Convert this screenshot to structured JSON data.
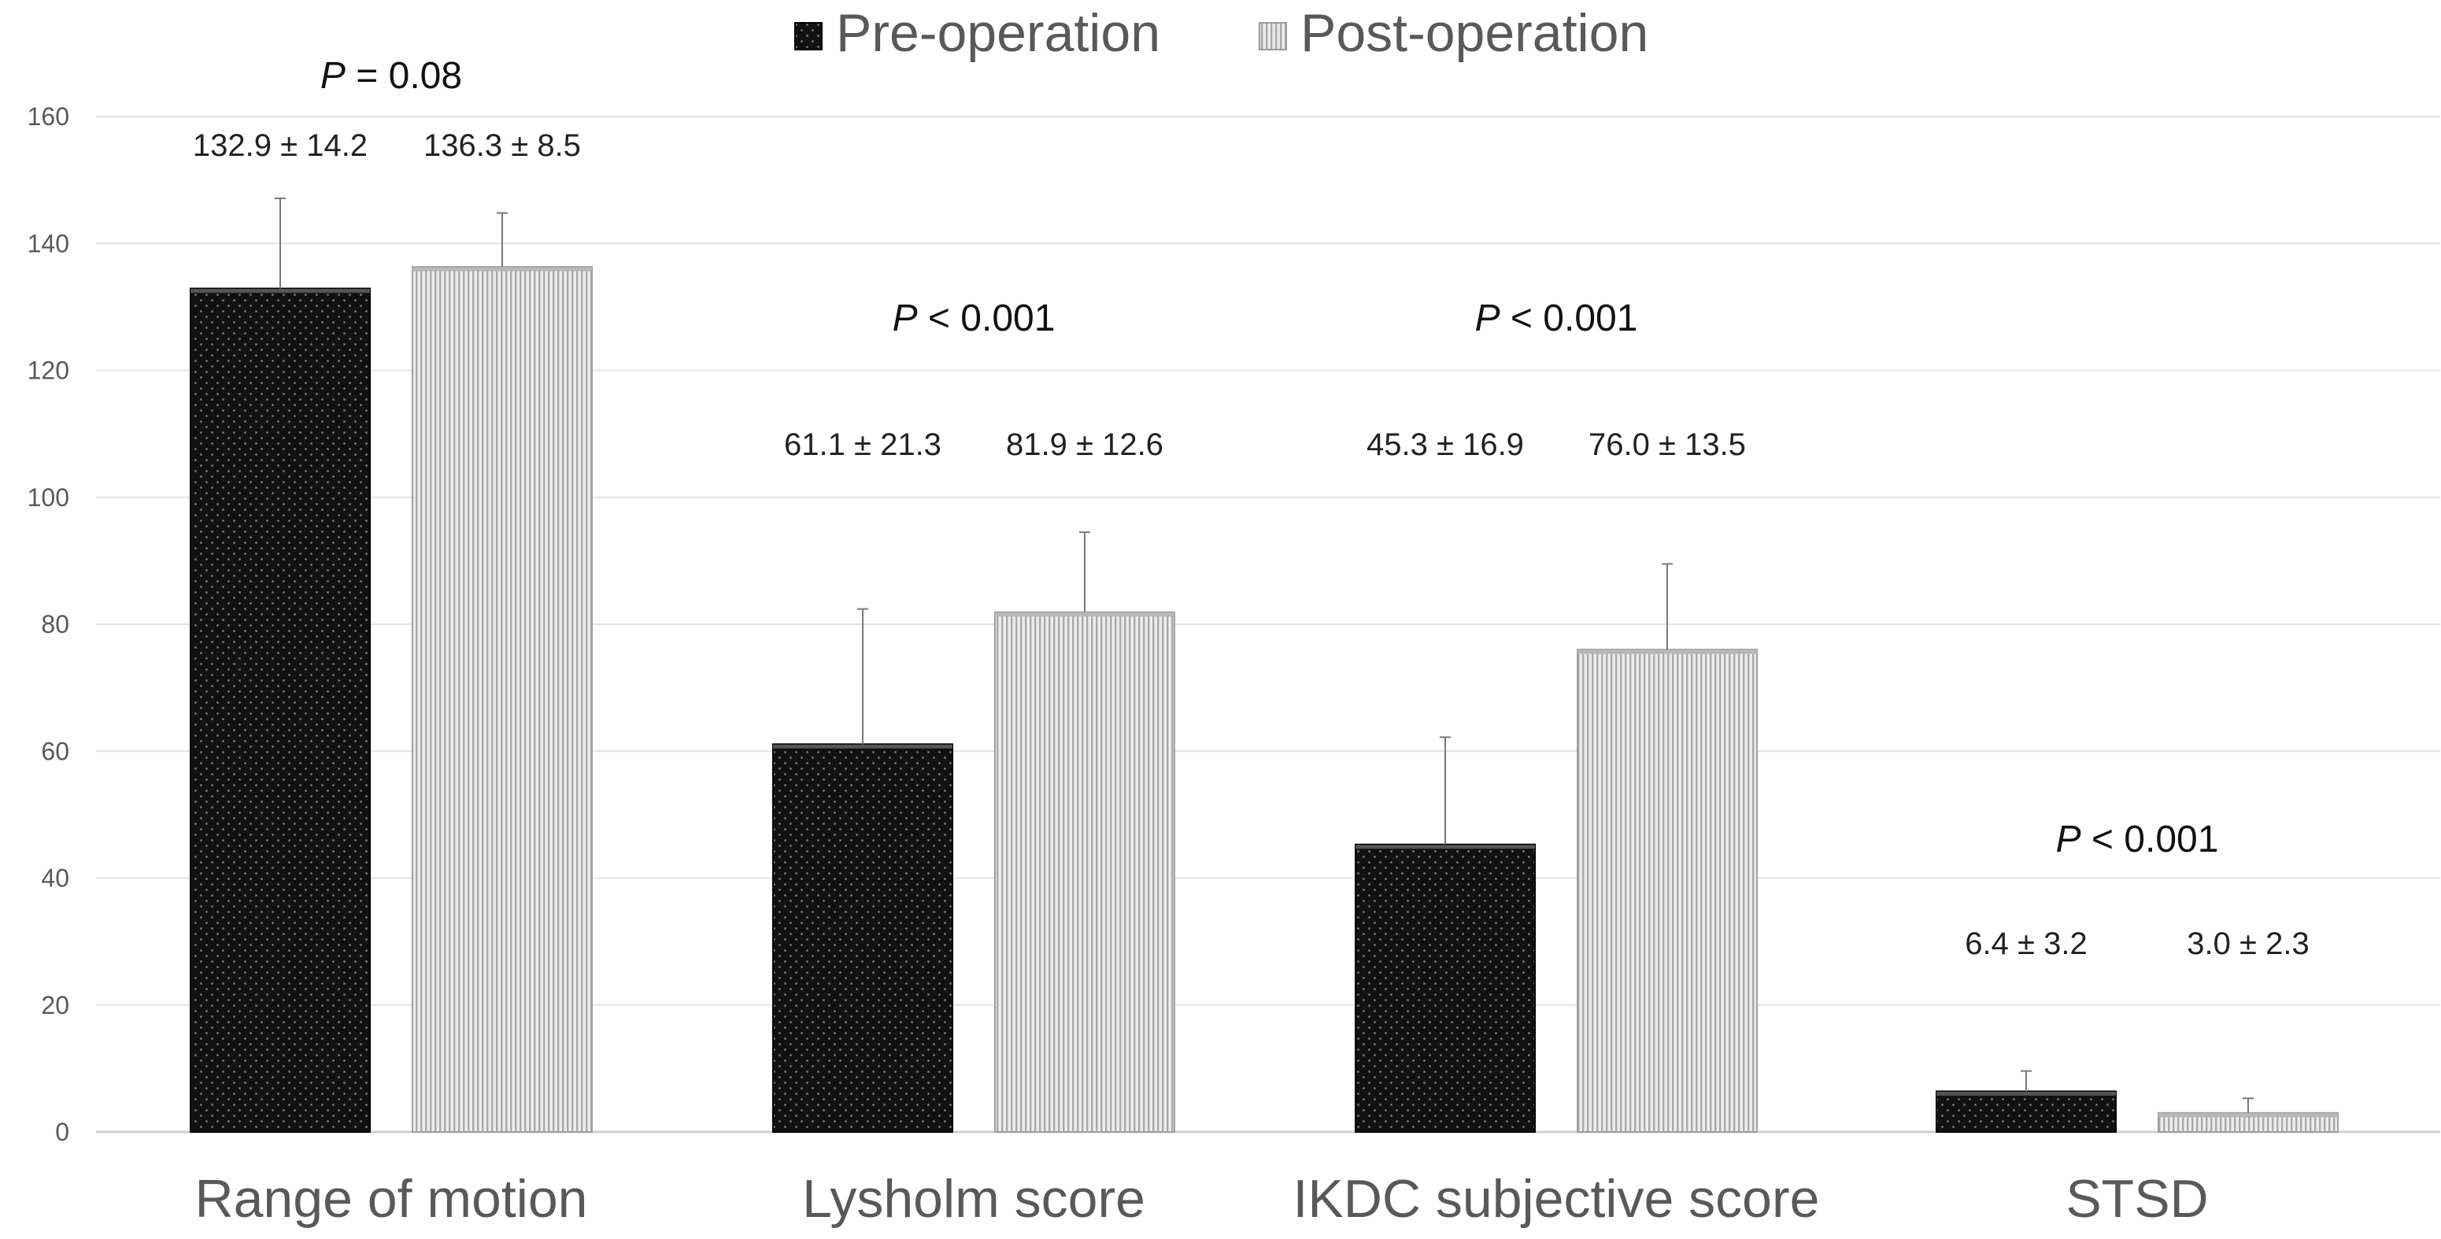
{
  "chart_data": {
    "type": "bar",
    "title": "",
    "xlabel": "",
    "ylabel": "",
    "ylim": [
      0,
      160
    ],
    "yticks": [
      0,
      20,
      40,
      60,
      80,
      100,
      120,
      140,
      160
    ],
    "grid": true,
    "legend_position": "top-center",
    "categories": [
      "Range of motion",
      "Lysholm score",
      "IKDC subjective score",
      "STSD"
    ],
    "series": [
      {
        "name": "Pre-operation",
        "color": "#111111",
        "pattern": "dots",
        "values": [
          132.9,
          61.1,
          45.3,
          6.4
        ],
        "errors": [
          14.2,
          21.3,
          16.9,
          3.2
        ],
        "labels": [
          "132.9 ± 14.2",
          "61.1 ± 21.3",
          "45.3 ± 16.9",
          "6.4 ± 3.2"
        ]
      },
      {
        "name": "Post-operation",
        "color": "#d4d4d4",
        "pattern": "vertical-lines",
        "values": [
          136.3,
          81.9,
          76.0,
          3.0
        ],
        "errors": [
          8.5,
          12.6,
          13.5,
          2.3
        ],
        "labels": [
          "136.3 ± 8.5",
          "81.9 ± 12.6",
          "76.0 ± 13.5",
          "3.0 ± 2.3"
        ]
      }
    ],
    "p_values": [
      {
        "italic": "P",
        "rest": " = 0.08"
      },
      {
        "italic": "P",
        "rest": " < 0.001"
      },
      {
        "italic": "P",
        "rest": " < 0.001"
      },
      {
        "italic": "P",
        "rest": " < 0.001"
      }
    ]
  }
}
